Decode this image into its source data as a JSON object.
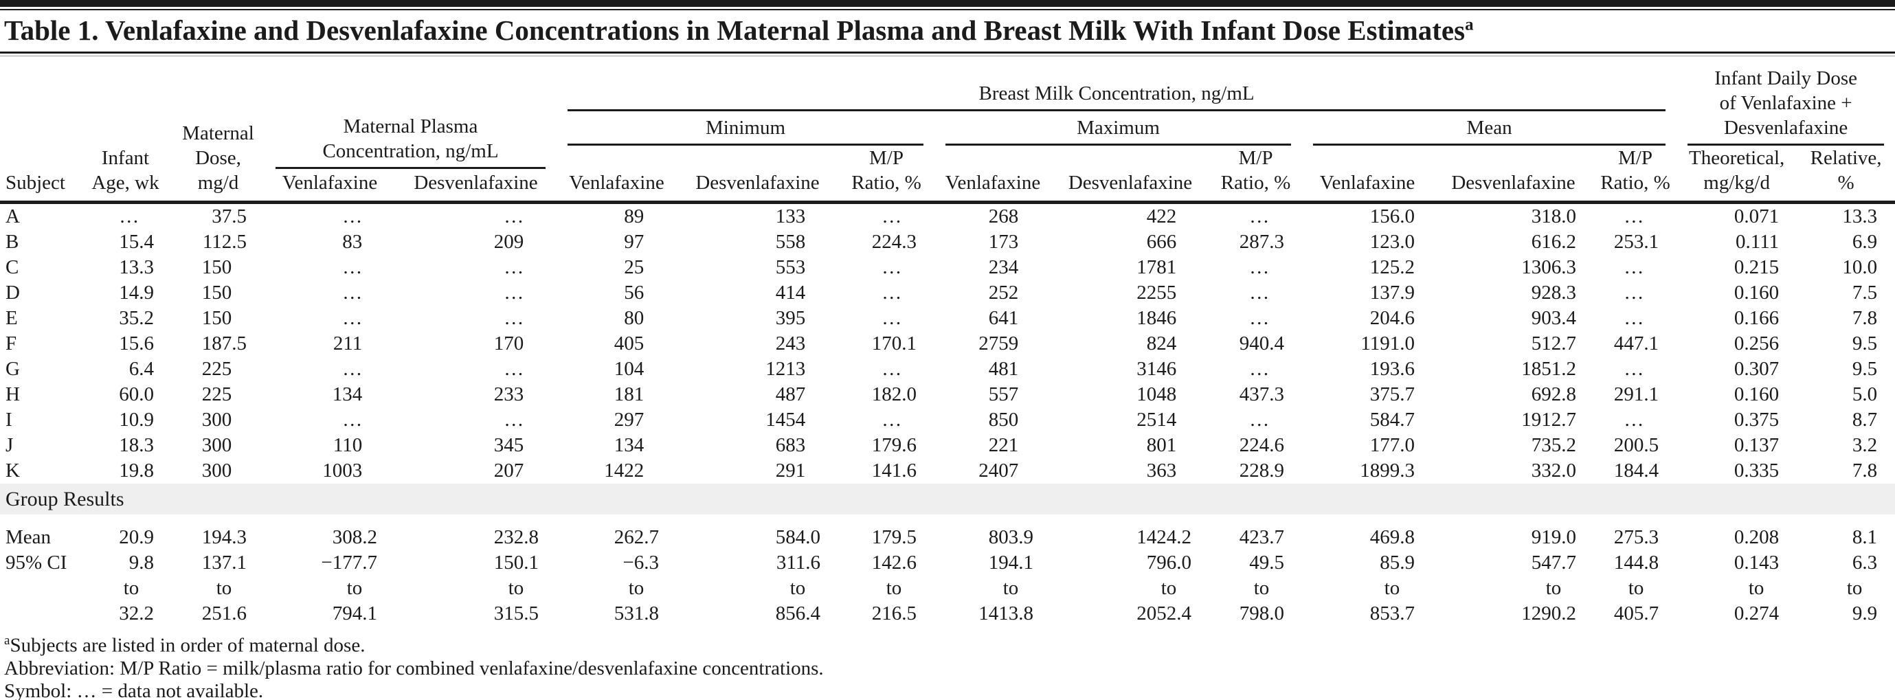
{
  "table": {
    "title": "Table 1. Venlafaxine and Desvenlafaxine Concentrations in Maternal Plasma and Breast Milk With Infant Dose Estimates",
    "title_superscript": "a",
    "col_groups": {
      "maternal_plasma": "Maternal Plasma\nConcentration, ng/mL",
      "breast_milk": "Breast Milk Concentration, ng/mL",
      "infant_daily_dose": "Infant Daily Dose\nof Venlafaxine +\nDesvenlafaxine",
      "minimum": "Minimum",
      "maximum": "Maximum",
      "mean": "Mean"
    },
    "sub_columns": [
      "Subject",
      "Infant\nAge, wk",
      "Maternal\nDose,\nmg/d",
      "Venlafaxine",
      "Desvenlafaxine",
      "Venlafaxine",
      "Desvenlafaxine",
      "M/P\nRatio, %",
      "Venlafaxine",
      "Desvenlafaxine",
      "M/P\nRatio, %",
      "Venlafaxine",
      "Desvenlafaxine",
      "M/P\nRatio, %",
      "Theoretical,\nmg/kg/d",
      "Relative,\n%"
    ],
    "rows": [
      {
        "subject": "A",
        "values": [
          "…",
          "37.5",
          "…",
          "…",
          "89",
          "133",
          "…",
          "268",
          "422",
          "…",
          "156.0",
          "318.0",
          "…",
          "0.071",
          "13.3"
        ]
      },
      {
        "subject": "B",
        "values": [
          "15.4",
          "112.5",
          "83",
          "209",
          "97",
          "558",
          "224.3",
          "173",
          "666",
          "287.3",
          "123.0",
          "616.2",
          "253.1",
          "0.111",
          "6.9"
        ]
      },
      {
        "subject": "C",
        "values": [
          "13.3",
          "150",
          "…",
          "…",
          "25",
          "553",
          "…",
          "234",
          "1781",
          "…",
          "125.2",
          "1306.3",
          "…",
          "0.215",
          "10.0"
        ]
      },
      {
        "subject": "D",
        "values": [
          "14.9",
          "150",
          "…",
          "…",
          "56",
          "414",
          "…",
          "252",
          "2255",
          "…",
          "137.9",
          "928.3",
          "…",
          "0.160",
          "7.5"
        ]
      },
      {
        "subject": "E",
        "values": [
          "35.2",
          "150",
          "…",
          "…",
          "80",
          "395",
          "…",
          "641",
          "1846",
          "…",
          "204.6",
          "903.4",
          "…",
          "0.166",
          "7.8"
        ]
      },
      {
        "subject": "F",
        "values": [
          "15.6",
          "187.5",
          "211",
          "170",
          "405",
          "243",
          "170.1",
          "2759",
          "824",
          "940.4",
          "1191.0",
          "512.7",
          "447.1",
          "0.256",
          "9.5"
        ]
      },
      {
        "subject": "G",
        "values": [
          "6.4",
          "225",
          "…",
          "…",
          "104",
          "1213",
          "…",
          "481",
          "3146",
          "…",
          "193.6",
          "1851.2",
          "…",
          "0.307",
          "9.5"
        ]
      },
      {
        "subject": "H",
        "values": [
          "60.0",
          "225",
          "134",
          "233",
          "181",
          "487",
          "182.0",
          "557",
          "1048",
          "437.3",
          "375.7",
          "692.8",
          "291.1",
          "0.160",
          "5.0"
        ]
      },
      {
        "subject": "I",
        "values": [
          "10.9",
          "300",
          "…",
          "…",
          "297",
          "1454",
          "…",
          "850",
          "2514",
          "…",
          "584.7",
          "1912.7",
          "…",
          "0.375",
          "8.7"
        ]
      },
      {
        "subject": "J",
        "values": [
          "18.3",
          "300",
          "110",
          "345",
          "134",
          "683",
          "179.6",
          "221",
          "801",
          "224.6",
          "177.0",
          "735.2",
          "200.5",
          "0.137",
          "3.2"
        ]
      },
      {
        "subject": "K",
        "values": [
          "19.8",
          "300",
          "1003",
          "207",
          "1422",
          "291",
          "141.6",
          "2407",
          "363",
          "228.9",
          "1899.3",
          "332.0",
          "184.4",
          "0.335",
          "7.8"
        ]
      }
    ],
    "group_results_label": "Group Results",
    "summary_rows": [
      {
        "label": "Mean",
        "values": [
          "20.9",
          "194.3",
          "308.2",
          "232.8",
          "262.7",
          "584.0",
          "179.5",
          "803.9",
          "1424.2",
          "423.7",
          "469.8",
          "919.0",
          "275.3",
          "0.208",
          "8.1"
        ]
      },
      {
        "label": "95% CI",
        "values": [
          "9.8",
          "137.1",
          "−177.7",
          "150.1",
          "−6.3",
          "311.6",
          "142.6",
          "194.1",
          "796.0",
          "49.5",
          "85.9",
          "547.7",
          "144.8",
          "0.143",
          "6.3"
        ]
      },
      {
        "label": "",
        "values": [
          "to",
          "to",
          "to",
          "to",
          "to",
          "to",
          "to",
          "to",
          "to",
          "to",
          "to",
          "to",
          "to",
          "to",
          "to"
        ]
      },
      {
        "label": "",
        "values": [
          "32.2",
          "251.6",
          "794.1",
          "315.5",
          "531.8",
          "856.4",
          "216.5",
          "1413.8",
          "2052.4",
          "798.0",
          "853.7",
          "1290.2",
          "405.7",
          "0.274",
          "9.9"
        ]
      }
    ],
    "footnotes": [
      {
        "sup": "a",
        "text": "Subjects are listed in order of maternal dose."
      },
      {
        "sup": "",
        "text": "Abbreviation: M/P Ratio = milk/plasma ratio for combined venlafaxine/desvenlafaxine concentrations."
      },
      {
        "sup": "",
        "text": "Symbol: … = data not available."
      }
    ]
  }
}
